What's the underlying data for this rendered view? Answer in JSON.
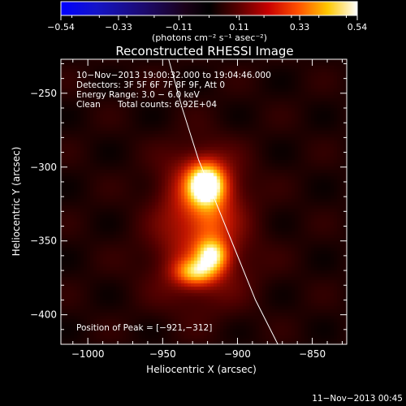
{
  "colorbar": {
    "ticks": [
      {
        "value": -0.54,
        "label": "−0.54"
      },
      {
        "value": -0.33,
        "label": "−0.33"
      },
      {
        "value": -0.11,
        "label": "−0.11"
      },
      {
        "value": 0.11,
        "label": "0.11"
      },
      {
        "value": 0.33,
        "label": "0.33"
      },
      {
        "value": 0.54,
        "label": "0.54"
      }
    ],
    "range": [
      -0.54,
      0.54
    ],
    "unit_label": "(photons cm⁻² s⁻¹ asec⁻²)"
  },
  "chart_data": {
    "type": "heatmap",
    "title": "Reconstructed RHESSI Image",
    "xlabel": "Heliocentric X (arcsec)",
    "ylabel": "Heliocentric Y (arcsec)",
    "xlim": [
      -1018,
      -827
    ],
    "ylim": [
      -420,
      -227
    ],
    "x_ticks": [
      {
        "value": -1000,
        "label": "−1000"
      },
      {
        "value": -950,
        "label": "−950"
      },
      {
        "value": -900,
        "label": "−900"
      },
      {
        "value": -850,
        "label": "−850"
      }
    ],
    "y_ticks": [
      {
        "value": -250,
        "label": "−250"
      },
      {
        "value": -300,
        "label": "−300"
      },
      {
        "value": -350,
        "label": "−350"
      },
      {
        "value": -400,
        "label": "−400"
      }
    ],
    "sources": [
      {
        "x": -921,
        "y": -312,
        "peak": 0.54,
        "sigma_x": 8,
        "sigma_y": 9
      },
      {
        "x": -924,
        "y": -318,
        "peak": 0.2,
        "sigma_x": 18,
        "sigma_y": 20
      },
      {
        "x": -917,
        "y": -360,
        "peak": 0.36,
        "sigma_x": 7,
        "sigma_y": 7
      },
      {
        "x": -928,
        "y": -371,
        "peak": 0.3,
        "sigma_x": 9,
        "sigma_y": 6
      },
      {
        "x": -925,
        "y": -362,
        "peak": 0.14,
        "sigma_x": 22,
        "sigma_y": 22
      },
      {
        "x": -918,
        "y": -340,
        "peak": 0.08,
        "sigma_x": 8,
        "sigma_y": 14
      }
    ],
    "limb": [
      [
        -946,
        -227
      ],
      [
        -937,
        -260
      ],
      [
        -926,
        -295
      ],
      [
        -912,
        -330
      ],
      [
        -898,
        -365
      ],
      [
        -888,
        -390
      ],
      [
        -873,
        -420
      ]
    ],
    "annotations": {
      "time_range": "10−Nov−2013 19:00:32.000 to 19:04:46.000",
      "detectors": "Detectors: 3F 5F 6F 7F 8F 9F, Att 0",
      "energy": "Energy Range: 3.0 − 6.0 keV",
      "algorithm": "Clean",
      "counts": "Total counts: 6.92E+04",
      "peak_position": "Position of Peak = [−921,−312]"
    }
  },
  "footer_date": "11−Nov−2013 00:45"
}
